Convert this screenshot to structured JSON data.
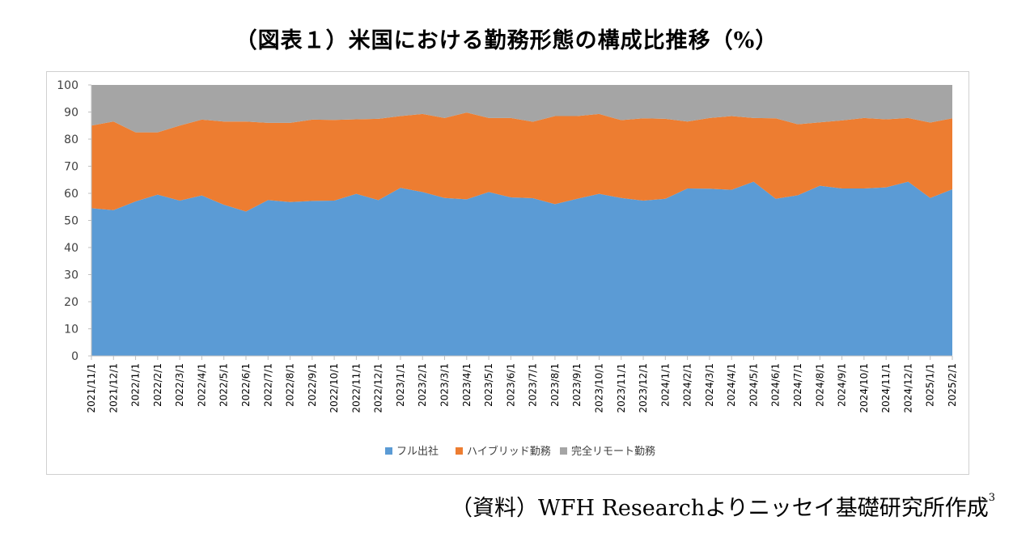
{
  "title": "（図表１）米国における勤務形態の構成比推移（%）",
  "source": {
    "text": "（資料）WFH Researchよりニッセイ基礎研究所作成",
    "footnote_mark": "3"
  },
  "chart_data": {
    "type": "area",
    "stacked": true,
    "title": "（図表１）米国における勤務形態の構成比推移（%）",
    "xlabel": "",
    "ylabel": "",
    "ylim": [
      0,
      100
    ],
    "yticks": [
      0,
      10,
      20,
      30,
      40,
      50,
      60,
      70,
      80,
      90,
      100
    ],
    "grid": false,
    "legend_position": "bottom",
    "categories": [
      "2021/11/1",
      "2021/12/1",
      "2022/1/1",
      "2022/2/1",
      "2022/3/1",
      "2022/4/1",
      "2022/5/1",
      "2022/6/1",
      "2022/7/1",
      "2022/8/1",
      "2022/9/1",
      "2022/10/1",
      "2022/11/1",
      "2022/12/1",
      "2023/1/1",
      "2023/2/1",
      "2023/3/1",
      "2023/4/1",
      "2023/5/1",
      "2023/6/1",
      "2023/7/1",
      "2023/8/1",
      "2023/9/1",
      "2023/10/1",
      "2023/11/1",
      "2023/12/1",
      "2024/1/1",
      "2024/2/1",
      "2024/3/1",
      "2024/4/1",
      "2024/5/1",
      "2024/6/1",
      "2024/7/1",
      "2024/8/1",
      "2024/9/1",
      "2024/10/1",
      "2024/11/1",
      "2024/12/1",
      "2025/1/1",
      "2025/2/1"
    ],
    "series": [
      {
        "name": "フル出社",
        "color": "#5b9bd5",
        "values": [
          54.5,
          53.8,
          57,
          59.5,
          57.3,
          59.2,
          55.8,
          53.3,
          57.5,
          56.8,
          57.2,
          57.3,
          59.8,
          57.5,
          62,
          60.5,
          58.3,
          57.8,
          60.5,
          58.5,
          58.2,
          56,
          58,
          59.8,
          58.3,
          57.3,
          58,
          61.8,
          61.7,
          61.3,
          64.3,
          58,
          59.3,
          62.8,
          61.8,
          61.8,
          62.2,
          64.3,
          58.3,
          61.5
        ]
      },
      {
        "name": "ハイブリッド勤務",
        "color": "#ed7d31",
        "values": [
          30.5,
          32.7,
          25.5,
          23,
          27.7,
          28,
          30.7,
          33.2,
          28.5,
          29.2,
          30,
          29.8,
          27.5,
          30,
          26.5,
          28.8,
          29.5,
          32,
          27.3,
          29.3,
          28.2,
          32.5,
          30.5,
          29.5,
          28.7,
          30.4,
          29.5,
          24.7,
          26.1,
          27.2,
          23.5,
          29.7,
          26.2,
          23.4,
          25.1,
          26,
          25.1,
          23.5,
          27.8,
          26.2
        ]
      },
      {
        "name": "完全リモート勤務",
        "color": "#a5a5a5",
        "values": [
          15,
          13.5,
          17.5,
          17.5,
          15,
          12.8,
          13.5,
          13.5,
          14,
          14,
          12.8,
          12.9,
          12.7,
          12.5,
          11.5,
          10.7,
          12.2,
          10.2,
          12.2,
          12.2,
          13.6,
          11.5,
          11.5,
          10.7,
          13,
          12.3,
          12.5,
          13.5,
          12.2,
          11.5,
          12.2,
          12.3,
          14.5,
          13.8,
          13.1,
          12.2,
          12.7,
          12.2,
          13.9,
          12.3
        ]
      }
    ]
  }
}
